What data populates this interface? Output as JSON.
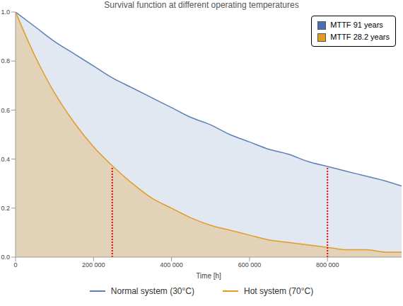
{
  "chart_data": {
    "type": "area",
    "title": "Survival function at different operating temperatures",
    "x_label": "Time [h]",
    "x": [
      0,
      50000,
      100000,
      150000,
      200000,
      250000,
      300000,
      350000,
      400000,
      450000,
      500000,
      550000,
      600000,
      650000,
      700000,
      750000,
      800000,
      850000,
      900000,
      950000,
      990000
    ],
    "series": [
      {
        "name": "Normal system (30°C)",
        "color": "#5e81b5",
        "values": [
          1.0,
          0.94,
          0.88,
          0.83,
          0.78,
          0.73,
          0.69,
          0.65,
          0.61,
          0.57,
          0.54,
          0.5,
          0.47,
          0.44,
          0.42,
          0.39,
          0.37,
          0.35,
          0.33,
          0.31,
          0.29
        ]
      },
      {
        "name": "Hot system (70°C)",
        "color": "#e19c24",
        "values": [
          1.0,
          0.82,
          0.67,
          0.55,
          0.45,
          0.37,
          0.3,
          0.24,
          0.2,
          0.16,
          0.13,
          0.11,
          0.09,
          0.07,
          0.06,
          0.05,
          0.04,
          0.03,
          0.03,
          0.02,
          0.02
        ]
      }
    ],
    "xlim": [
      0,
      990000
    ],
    "ylim": [
      0,
      1
    ],
    "xticks": [
      0,
      {
        "value": 200000,
        "label": "200 000"
      },
      {
        "value": 400000,
        "label": "400 000"
      },
      {
        "value": 600000,
        "label": "600 000"
      },
      {
        "value": 800000,
        "label": "800 000"
      }
    ],
    "yticks": [
      {
        "value": 0,
        "label": "0.0"
      },
      0.2,
      0.4,
      0.6,
      0.8,
      {
        "value": 1,
        "label": "1.0"
      }
    ],
    "grid": false,
    "legend": "bottom",
    "mttf_legend": [
      {
        "label": "MTTF 91 years",
        "color": "#4a6fb5"
      },
      {
        "label": "MTTF 28.2 years",
        "color": "#e19c24"
      }
    ],
    "mttf_lines": [
      {
        "x": 800000,
        "y": 0.37,
        "color": "#ff0000",
        "line_style": "dotted"
      },
      {
        "x": 248000,
        "y": 0.37,
        "color": "#ff0000",
        "line_style": "dotted"
      }
    ]
  }
}
